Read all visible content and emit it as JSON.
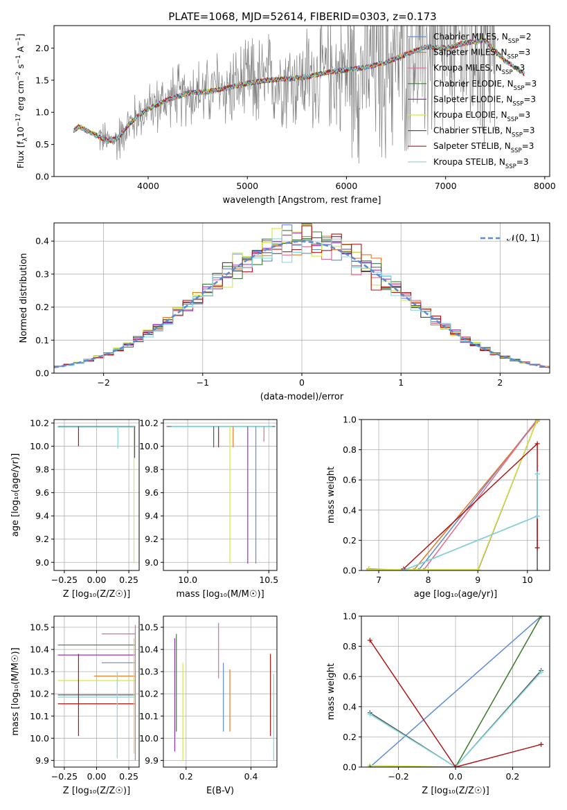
{
  "figure_title": "PLATE=1068, MJD=52614, FIBERID=0303, z=0.173",
  "colors": {
    "chabrier_miles": "#5b8bd6",
    "salpeter_miles": "#e87722",
    "kroupa_miles": "#e8688c",
    "chabrier_elodie": "#3e7a3e",
    "salpeter_elodie": "#9b30c0",
    "kroupa_elodie": "#d6e83a",
    "chabrier_stelib": "#555555",
    "salpeter_stelib": "#b01515",
    "kroupa_stelib": "#7fd8e0",
    "observed_spectrum": "#808080",
    "normal_curve": "#5b8bd6",
    "grid": "#b0b0b0"
  },
  "chart_data": [
    {
      "id": "spectrum",
      "type": "line",
      "xlabel": "wavelength [Angstrom, rest frame]",
      "ylabel": "Flux [f",
      "ylabel_parts": [
        "Flux [f",
        "λ",
        "10",
        "−17",
        " erg cm",
        "−2",
        " s",
        "−1",
        " A",
        "−1",
        "]"
      ],
      "xlim": [
        3050,
        8050
      ],
      "ylim": [
        0,
        2.35
      ],
      "xticks": [
        4000,
        5000,
        6000,
        7000,
        8000
      ],
      "yticks": [
        0.0,
        0.5,
        1.0,
        1.5,
        2.0
      ],
      "ytick_labels": [
        "0.0",
        "0.5",
        "1.0",
        "1.5",
        "2.0"
      ],
      "grid": false,
      "legend_position": "top-right",
      "observed_range": [
        3500,
        7500
      ],
      "model_continuum": {
        "x": [
          3250,
          3300,
          3400,
          3500,
          3600,
          3700,
          3800,
          3900,
          4000,
          4200,
          4400,
          4600,
          4800,
          5000,
          5200,
          5400,
          5600,
          5800,
          6000,
          6200,
          6400,
          6600,
          6800,
          7000,
          7200,
          7400,
          7600,
          7800
        ],
        "y": [
          0.72,
          0.78,
          0.7,
          0.62,
          0.55,
          0.6,
          0.8,
          0.95,
          1.05,
          1.2,
          1.3,
          1.32,
          1.38,
          1.45,
          1.5,
          1.52,
          1.55,
          1.62,
          1.66,
          1.7,
          1.78,
          1.9,
          2.02,
          2.0,
          2.08,
          2.12,
          1.8,
          1.6
        ]
      },
      "legend": [
        {
          "label": "Chabrier MILES",
          "nssp": "2",
          "color_key": "chabrier_miles"
        },
        {
          "label": "Salpeter MILES",
          "nssp": "3",
          "color_key": "salpeter_miles"
        },
        {
          "label": "Kroupa MILES",
          "nssp": "3",
          "color_key": "kroupa_miles"
        },
        {
          "label": "Chabrier ELODIE",
          "nssp": "3",
          "color_key": "chabrier_elodie"
        },
        {
          "label": "Salpeter ELODIE",
          "nssp": "3",
          "color_key": "salpeter_elodie"
        },
        {
          "label": "Kroupa ELODIE",
          "nssp": "3",
          "color_key": "kroupa_elodie"
        },
        {
          "label": "Chabrier STELIB",
          "nssp": "3",
          "color_key": "chabrier_stelib"
        },
        {
          "label": "Salpeter STELIB",
          "nssp": "3",
          "color_key": "salpeter_stelib"
        },
        {
          "label": "Kroupa STELIB",
          "nssp": "3",
          "color_key": "kroupa_stelib"
        }
      ],
      "legend_prefix": "N",
      "legend_sub": "SSP"
    },
    {
      "id": "residuals",
      "type": "histogram",
      "xlabel": "(data-model)/error",
      "ylabel": "Normed distribution",
      "xlim": [
        -2.5,
        2.5
      ],
      "ylim": [
        0,
        0.455
      ],
      "xticks": [
        -2,
        -1,
        0,
        1,
        2
      ],
      "xtick_labels": [
        "−2",
        "−1",
        "0",
        "1",
        "2"
      ],
      "yticks": [
        0.0,
        0.1,
        0.2,
        0.3,
        0.4
      ],
      "ytick_labels": [
        "0.0",
        "0.1",
        "0.2",
        "0.3",
        "0.4"
      ],
      "grid": true,
      "bin_width": 0.1,
      "legend_label": "𝒩(0, 1)",
      "legend_position": "top-right",
      "series_keys": [
        "chabrier_miles",
        "salpeter_miles",
        "kroupa_miles",
        "chabrier_elodie",
        "salpeter_elodie",
        "kroupa_elodie",
        "chabrier_stelib",
        "salpeter_stelib",
        "kroupa_stelib"
      ]
    },
    {
      "id": "age_vs_Z",
      "type": "errorbar",
      "xlabel": "Z [log₁₀(Z/Z☉)]",
      "ylabel": "age  [log₁₀(age/yr)]",
      "xlim": [
        -0.33,
        0.33
      ],
      "ylim": [
        8.93,
        10.23
      ],
      "xticks": [
        -0.25,
        0.0,
        0.25
      ],
      "xtick_labels": [
        "−0.25",
        "0.00",
        "0.25"
      ],
      "yticks": [
        9.0,
        9.2,
        9.4,
        9.6,
        9.8,
        10.0,
        10.2
      ],
      "ytick_labels": [
        "9.0",
        "9.2",
        "9.4",
        "9.6",
        "9.8",
        "10.0",
        "10.2"
      ],
      "grid": true,
      "segments": [
        {
          "x0": -0.3,
          "x1": 0.3,
          "y0": 10.17,
          "y1": 10.17,
          "c": "chabrier_stelib"
        },
        {
          "x0": -0.3,
          "x1": 0.3,
          "y0": 10.165,
          "y1": 10.165,
          "c": "kroupa_stelib"
        },
        {
          "x0": -0.14,
          "x1": -0.14,
          "y0": 10.0,
          "y1": 10.17,
          "c": "salpeter_stelib"
        },
        {
          "x0": 0.165,
          "x1": 0.165,
          "y0": 9.98,
          "y1": 10.17,
          "c": "kroupa_stelib"
        },
        {
          "x0": 0.29,
          "x1": 0.29,
          "y0": 8.99,
          "y1": 10.17,
          "c": "kroupa_elodie"
        },
        {
          "x0": 0.295,
          "x1": 0.295,
          "y0": 9.9,
          "y1": 10.17,
          "c": "chabrier_stelib"
        }
      ]
    },
    {
      "id": "age_vs_mass",
      "type": "errorbar",
      "xlabel": "mass [log₁₀(M/M☉)]",
      "ylabel": "",
      "xlim": [
        9.85,
        10.55
      ],
      "ylim": [
        8.93,
        10.23
      ],
      "xticks": [
        10.0,
        10.5
      ],
      "xtick_labels": [
        "10.0",
        "10.5"
      ],
      "yticks": [
        9.0,
        9.2,
        9.4,
        9.6,
        9.8,
        10.0,
        10.2
      ],
      "ytick_labels": [
        "9.0",
        "9.2",
        "9.4",
        "9.6",
        "9.8",
        "10.0",
        "10.2"
      ],
      "grid": true,
      "segments": [
        {
          "x0": 9.87,
          "x1": 10.54,
          "y0": 10.17,
          "y1": 10.17,
          "c": "chabrier_stelib"
        },
        {
          "x0": 9.9,
          "x1": 10.52,
          "y0": 10.168,
          "y1": 10.168,
          "c": "kroupa_stelib"
        },
        {
          "x0": 10.16,
          "x1": 10.16,
          "y0": 9.99,
          "y1": 10.17,
          "c": "chabrier_stelib"
        },
        {
          "x0": 10.19,
          "x1": 10.19,
          "y0": 9.99,
          "y1": 10.17,
          "c": "salpeter_stelib"
        },
        {
          "x0": 10.26,
          "x1": 10.26,
          "y0": 8.99,
          "y1": 10.17,
          "c": "kroupa_elodie"
        },
        {
          "x0": 10.37,
          "x1": 10.37,
          "y0": 8.99,
          "y1": 10.17,
          "c": "salpeter_elodie"
        },
        {
          "x0": 10.42,
          "x1": 10.42,
          "y0": 8.99,
          "y1": 10.17,
          "c": "chabrier_miles"
        },
        {
          "x0": 10.47,
          "x1": 10.47,
          "y0": 10.04,
          "y1": 10.17,
          "c": "kroupa_miles"
        },
        {
          "x0": 10.28,
          "x1": 10.28,
          "y0": 9.99,
          "y1": 10.17,
          "c": "salpeter_miles"
        }
      ]
    },
    {
      "id": "weight_vs_age",
      "type": "line",
      "xlabel": "age  [log₁₀(age/yr)]",
      "ylabel": "mass weight",
      "xlim": [
        6.65,
        10.45
      ],
      "ylim": [
        0,
        1
      ],
      "xticks": [
        7,
        8,
        9,
        10
      ],
      "xtick_labels": [
        "7",
        "8",
        "9",
        "10"
      ],
      "yticks": [
        0.0,
        0.2,
        0.4,
        0.6,
        0.8,
        1.0
      ],
      "ytick_labels": [
        "0.0",
        "0.2",
        "0.4",
        "0.6",
        "0.8",
        "1.0"
      ],
      "grid": true,
      "series": [
        {
          "c": "chabrier_miles",
          "x": [
            7.8,
            10.2
          ],
          "y": [
            0.0,
            1.0
          ]
        },
        {
          "c": "salpeter_miles",
          "x": [
            6.8,
            7.7,
            10.2
          ],
          "y": [
            0.01,
            0.0,
            0.99
          ]
        },
        {
          "c": "kroupa_miles",
          "x": [
            7.9,
            10.2
          ],
          "y": [
            0.0,
            1.0
          ]
        },
        {
          "c": "chabrier_elodie",
          "x": [
            6.8,
            9.0,
            10.2
          ],
          "y": [
            0.0,
            0.0,
            1.0
          ]
        },
        {
          "c": "salpeter_elodie",
          "x": [
            6.8,
            9.0,
            10.2
          ],
          "y": [
            0.0,
            0.0,
            1.0
          ]
        },
        {
          "c": "kroupa_elodie",
          "x": [
            6.8,
            9.0,
            10.2
          ],
          "y": [
            0.005,
            0.005,
            1.0
          ]
        },
        {
          "c": "chabrier_stelib",
          "x": [
            7.5,
            10.2,
            10.2,
            10.2
          ],
          "y": [
            0.0,
            0.36,
            0.64,
            0.0
          ]
        },
        {
          "c": "salpeter_stelib",
          "x": [
            7.5,
            10.2,
            10.2
          ],
          "y": [
            0.01,
            0.84,
            0.15
          ]
        },
        {
          "c": "kroupa_stelib",
          "x": [
            7.5,
            10.2,
            10.2
          ],
          "y": [
            0.0,
            0.36,
            0.64
          ]
        }
      ]
    },
    {
      "id": "mass_vs_Z",
      "type": "errorbar",
      "xlabel": "Z [log₁₀(Z/Z☉)]",
      "ylabel": "mass [log₁₀(M/M☉)]",
      "xlim": [
        -0.33,
        0.33
      ],
      "ylim": [
        9.87,
        10.55
      ],
      "xticks": [
        -0.25,
        0.0,
        0.25
      ],
      "xtick_labels": [
        "−0.25",
        "0.00",
        "0.25"
      ],
      "yticks": [
        9.9,
        10.0,
        10.1,
        10.2,
        10.3,
        10.4,
        10.5
      ],
      "ytick_labels": [
        "9.9",
        "10.0",
        "10.1",
        "10.2",
        "10.3",
        "10.4",
        "10.5"
      ],
      "grid": true,
      "segments": [
        {
          "x0": 0.04,
          "x1": 0.3,
          "y0": 10.47,
          "y1": 10.47,
          "c": "kroupa_miles"
        },
        {
          "x0": -0.3,
          "x1": 0.3,
          "y0": 10.42,
          "y1": 10.42,
          "c": "chabrier_elodie"
        },
        {
          "x0": -0.3,
          "x1": 0.3,
          "y0": 10.375,
          "y1": 10.375,
          "c": "salpeter_elodie"
        },
        {
          "x0": 0.04,
          "x1": 0.3,
          "y0": 10.34,
          "y1": 10.34,
          "c": "chabrier_miles"
        },
        {
          "x0": -0.02,
          "x1": 0.3,
          "y0": 10.28,
          "y1": 10.28,
          "c": "salpeter_miles"
        },
        {
          "x0": -0.3,
          "x1": 0.3,
          "y0": 10.26,
          "y1": 10.26,
          "c": "kroupa_elodie"
        },
        {
          "x0": -0.3,
          "x1": 0.3,
          "y0": 10.195,
          "y1": 10.195,
          "c": "chabrier_stelib"
        },
        {
          "x0": -0.3,
          "x1": 0.3,
          "y0": 10.185,
          "y1": 10.185,
          "c": "kroupa_stelib"
        },
        {
          "x0": -0.3,
          "x1": 0.3,
          "y0": 10.155,
          "y1": 10.155,
          "c": "salpeter_stelib"
        },
        {
          "x0": -0.14,
          "x1": -0.14,
          "y0": 10.01,
          "y1": 10.38,
          "c": "salpeter_stelib"
        },
        {
          "x0": 0.16,
          "x1": 0.16,
          "y0": 9.91,
          "y1": 10.3,
          "c": "kroupa_stelib"
        },
        {
          "x0": 0.3,
          "x1": 0.3,
          "y0": 9.9,
          "y1": 10.51,
          "c": "kroupa_miles"
        },
        {
          "x0": 0.29,
          "x1": 0.29,
          "y0": 9.93,
          "y1": 10.45,
          "c": "kroupa_elodie"
        }
      ]
    },
    {
      "id": "mass_vs_EBV",
      "type": "errorbar",
      "xlabel": "E(B-V)",
      "ylabel": "",
      "xlim": [
        0.13,
        0.48
      ],
      "ylim": [
        9.87,
        10.55
      ],
      "xticks": [
        0.2,
        0.4
      ],
      "xtick_labels": [
        "0.2",
        "0.4"
      ],
      "yticks": [
        9.9,
        10.0,
        10.1,
        10.2,
        10.3,
        10.4,
        10.5
      ],
      "ytick_labels": [
        "9.9",
        "10.0",
        "10.1",
        "10.2",
        "10.3",
        "10.4",
        "10.5"
      ],
      "grid": true,
      "segments": [
        {
          "x0": 0.165,
          "x1": 0.165,
          "y0": 9.94,
          "y1": 10.45,
          "c": "salpeter_elodie"
        },
        {
          "x0": 0.17,
          "x1": 0.17,
          "y0": 10.03,
          "y1": 10.47,
          "c": "chabrier_elodie"
        },
        {
          "x0": 0.19,
          "x1": 0.19,
          "y0": 9.9,
          "y1": 10.34,
          "c": "kroupa_elodie"
        },
        {
          "x0": 0.3,
          "x1": 0.3,
          "y0": 10.27,
          "y1": 10.52,
          "c": "kroupa_miles"
        },
        {
          "x0": 0.315,
          "x1": 0.315,
          "y0": 10.03,
          "y1": 10.34,
          "c": "chabrier_miles"
        },
        {
          "x0": 0.335,
          "x1": 0.335,
          "y0": 10.03,
          "y1": 10.31,
          "c": "salpeter_miles"
        },
        {
          "x0": 0.46,
          "x1": 0.46,
          "y0": 10.01,
          "y1": 10.38,
          "c": "salpeter_stelib"
        },
        {
          "x0": 0.47,
          "x1": 0.47,
          "y0": 9.9,
          "y1": 10.29,
          "c": "kroupa_stelib"
        }
      ]
    },
    {
      "id": "weight_vs_Z",
      "type": "line",
      "xlabel": "Z [log₁₀(Z/Z☉)]",
      "ylabel": "mass weight",
      "xlim": [
        -0.33,
        0.33
      ],
      "ylim": [
        0,
        1
      ],
      "xticks": [
        -0.2,
        0.0,
        0.2
      ],
      "xtick_labels": [
        "−0.2",
        "0.0",
        "0.2"
      ],
      "yticks": [
        0.0,
        0.2,
        0.4,
        0.6,
        0.8,
        1.0
      ],
      "ytick_labels": [
        "0.0",
        "0.2",
        "0.4",
        "0.6",
        "0.8",
        "1.0"
      ],
      "grid": true,
      "series": [
        {
          "c": "chabrier_miles",
          "x": [
            -0.3,
            0.3
          ],
          "y": [
            0.0,
            1.0
          ]
        },
        {
          "c": "kroupa_elodie",
          "x": [
            -0.3,
            0.0,
            0.3
          ],
          "y": [
            0.01,
            0.0,
            1.0
          ]
        },
        {
          "c": "chabrier_elodie",
          "x": [
            -0.3,
            0.0,
            0.3
          ],
          "y": [
            0.0,
            0.0,
            1.0
          ]
        },
        {
          "c": "chabrier_stelib",
          "x": [
            -0.3,
            0.0,
            0.3
          ],
          "y": [
            0.36,
            0.0,
            0.64
          ]
        },
        {
          "c": "kroupa_stelib",
          "x": [
            -0.3,
            0.0,
            0.3
          ],
          "y": [
            0.35,
            0.0,
            0.63
          ]
        },
        {
          "c": "salpeter_stelib",
          "x": [
            -0.3,
            0.0,
            0.3
          ],
          "y": [
            0.84,
            0.0,
            0.15
          ]
        }
      ]
    }
  ]
}
